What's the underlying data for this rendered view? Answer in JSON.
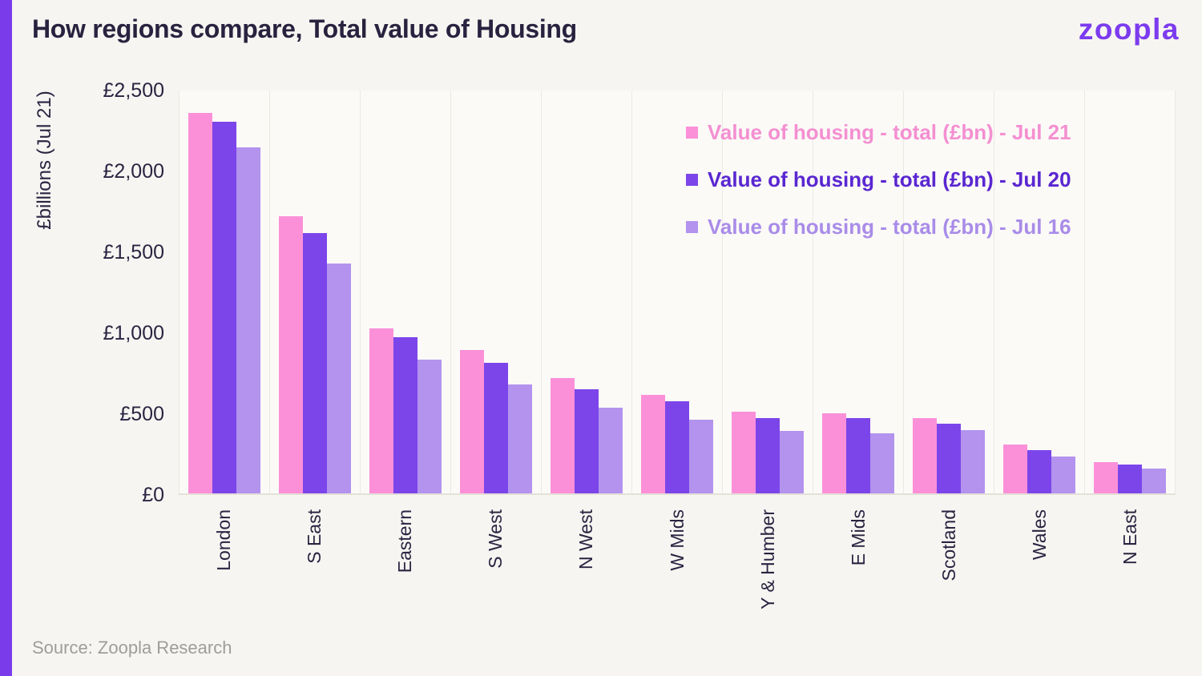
{
  "page": {
    "title": "How regions compare, Total value of Housing",
    "logo_text": "zoopla",
    "source": "Source: Zoopla Research"
  },
  "colors": {
    "accent_stripe": "#7A3BEB",
    "logo_purple": "#7C3BEF",
    "page_background": "#F7F5F1",
    "plot_background": "#FBFAF7",
    "gridline": "#ECE9E2",
    "baseline": "#E4E0D9",
    "text_dark": "#2A2442",
    "source_grey": "#9E9D9B"
  },
  "chart_data": {
    "type": "bar",
    "title": "How regions compare, Total value of Housing",
    "xlabel": "",
    "ylabel": "£billions (Jul 21)",
    "ylim": [
      0,
      2500
    ],
    "ytick_step": 500,
    "yticks": [
      "£0",
      "£500",
      "£1,000",
      "£1,500",
      "£2,000",
      "£2,500"
    ],
    "grid": "vertical category separators only, no horizontal gridlines",
    "legend_position": "top-right inside plot area",
    "categories": [
      "London",
      "S East",
      "Eastern",
      "S West",
      "N West",
      "W Mids",
      "Y & Humber",
      "E Mids",
      "Scotland",
      "Wales",
      "N East"
    ],
    "series": [
      {
        "name": "Value of housing - total (£bn) - Jul 21",
        "color": "#FC90D8",
        "label_color": "#F48FD1",
        "values": [
          2350,
          1715,
          1020,
          885,
          715,
          610,
          505,
          495,
          465,
          300,
          193
        ]
      },
      {
        "name": "Value of housing - total (£bn) - Jul 20",
        "color": "#7C45EA",
        "label_color": "#5A27D1",
        "values": [
          2295,
          1610,
          965,
          805,
          645,
          570,
          465,
          465,
          430,
          270,
          180
        ]
      },
      {
        "name": "Value of housing - total (£bn) - Jul 16",
        "color": "#B393EE",
        "label_color": "#A98CE9",
        "values": [
          2140,
          1420,
          825,
          675,
          530,
          455,
          385,
          370,
          390,
          228,
          155
        ]
      }
    ]
  }
}
